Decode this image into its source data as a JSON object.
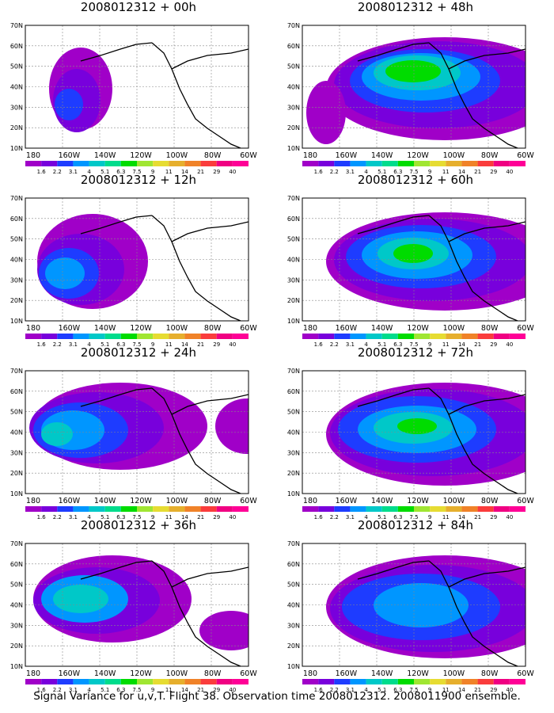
{
  "panels": [
    {
      "title": "2008012312 + 00h"
    },
    {
      "title": "2008012312 + 48h"
    },
    {
      "title": "2008012312 + 12h"
    },
    {
      "title": "2008012312 + 60h"
    },
    {
      "title": "2008012312 + 24h"
    },
    {
      "title": "2008012312 + 72h"
    },
    {
      "title": "2008012312 + 36h"
    },
    {
      "title": "2008012312 + 84h"
    }
  ],
  "axes": {
    "lat_labels": [
      "70N",
      "60N",
      "50N",
      "40N",
      "30N",
      "20N",
      "10N"
    ],
    "lon_labels": [
      "180",
      "160W",
      "140W",
      "120W",
      "100W",
      "80W",
      "60W"
    ]
  },
  "colorbar": {
    "labels": [
      "1.6",
      "2.2",
      "3.1",
      "4",
      "5.1",
      "6.3",
      "7.5",
      "9",
      "11",
      "14",
      "21",
      "29",
      "40"
    ],
    "colors": [
      "#a000c8",
      "#7800dc",
      "#1e3cff",
      "#0096ff",
      "#00c8c8",
      "#00dc8c",
      "#00dc00",
      "#a0e632",
      "#e6dc32",
      "#e6af2d",
      "#f08228",
      "#fa3c3c",
      "#f00082",
      "#ff0096"
    ]
  },
  "caption": "Signal Variance for u,v,T. Flight 38. Observation time 2008012312. 2008011900 ensemble."
}
